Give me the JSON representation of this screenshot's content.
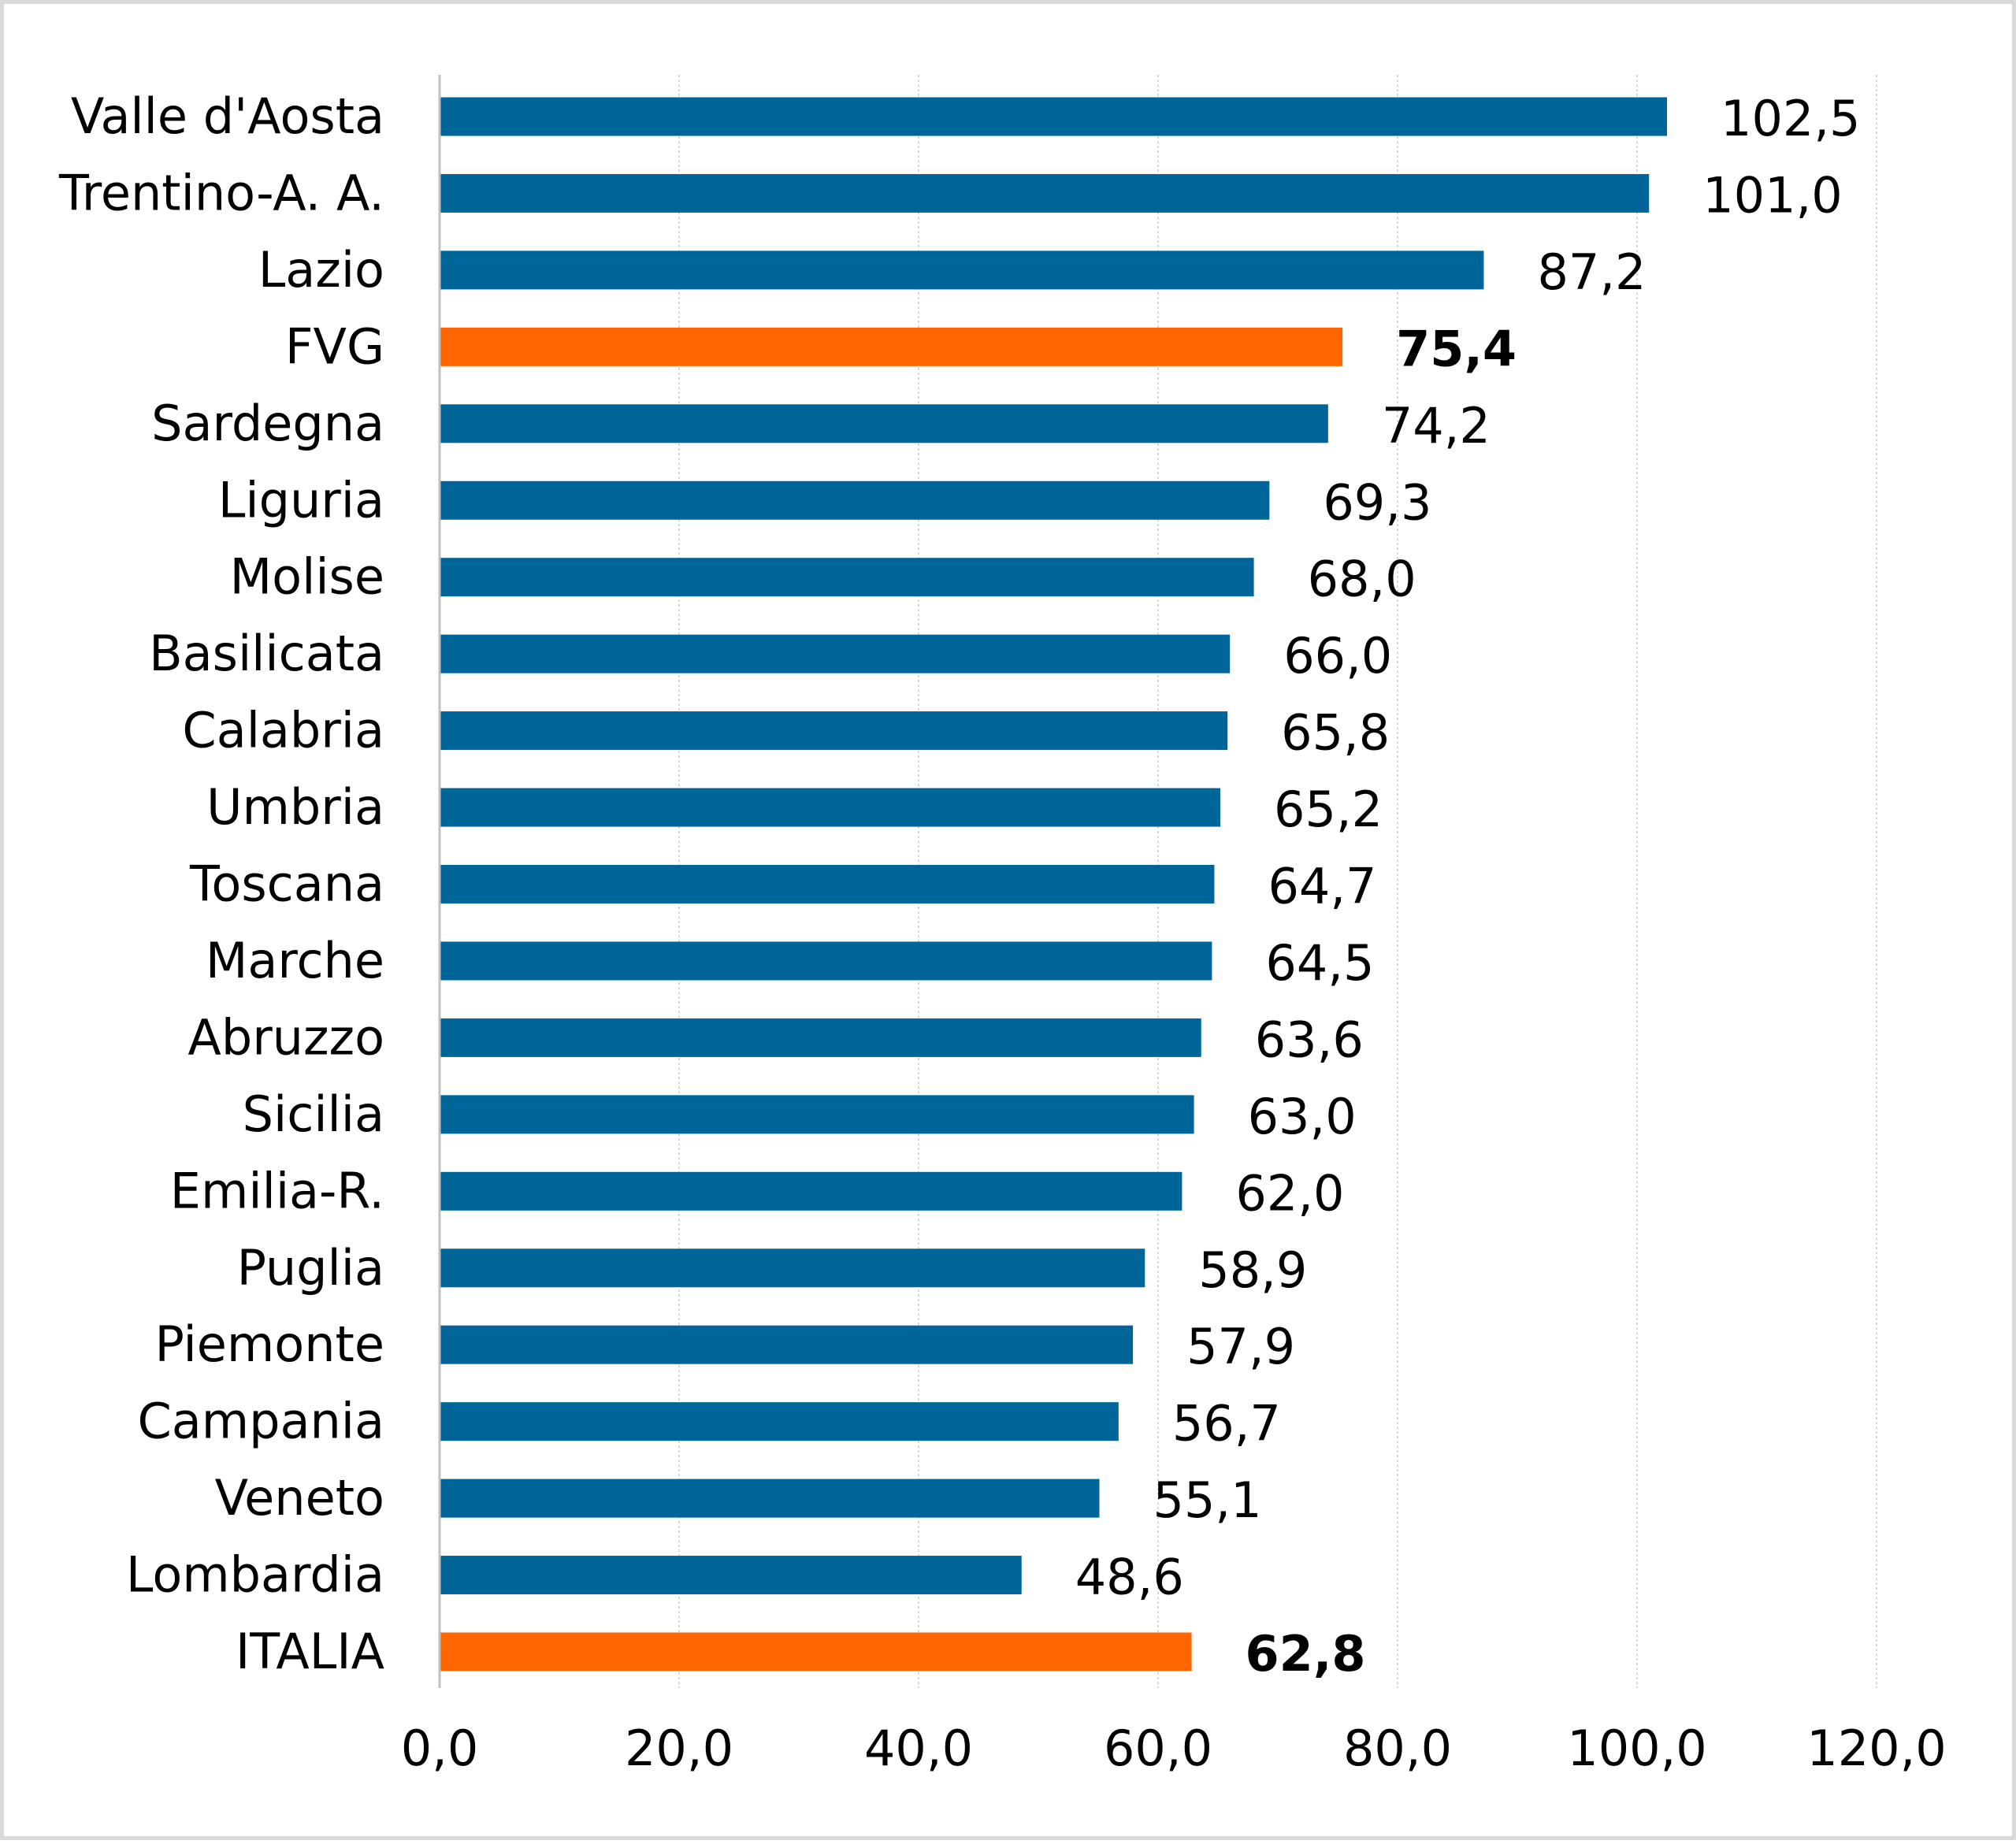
{
  "chart_data": {
    "type": "bar",
    "orientation": "horizontal",
    "title": "",
    "xlabel": "",
    "ylabel": "",
    "xlim": [
      0,
      120
    ],
    "ticks": [
      0,
      20,
      40,
      60,
      80,
      100,
      120
    ],
    "tick_labels": [
      "0,0",
      "20,0",
      "40,0",
      "60,0",
      "80,0",
      "100,0",
      "120,0"
    ],
    "grid": "vertical",
    "legend": "none",
    "colors": {
      "default": "#00669a",
      "highlight": "#ff6600",
      "grid": "#d9d9d9",
      "axis": "#bfbfbf"
    },
    "categories": [
      "Valle d'Aosta",
      "Trentino-A. A.",
      "Lazio",
      "FVG",
      "Sardegna",
      "Liguria",
      "Molise",
      "Basilicata",
      "Calabria",
      "Umbria",
      "Toscana",
      "Marche",
      "Abruzzo",
      "Sicilia",
      "Emilia-R.",
      "Puglia",
      "Piemonte",
      "Campania",
      "Veneto",
      "Lombardia",
      "ITALIA"
    ],
    "values": [
      102.5,
      101.0,
      87.2,
      75.4,
      74.2,
      69.3,
      68.0,
      66.0,
      65.8,
      65.2,
      64.7,
      64.5,
      63.6,
      63.0,
      62.0,
      58.9,
      57.9,
      56.7,
      55.1,
      48.6,
      62.8
    ],
    "value_labels": [
      "102,5",
      "101,0",
      "87,2",
      "75,4",
      "74,2",
      "69,3",
      "68,0",
      "66,0",
      "65,8",
      "65,2",
      "64,7",
      "64,5",
      "63,6",
      "63,0",
      "62,0",
      "58,9",
      "57,9",
      "56,7",
      "55,1",
      "48,6",
      "62,8"
    ],
    "highlighted": [
      "FVG",
      "ITALIA"
    ]
  }
}
